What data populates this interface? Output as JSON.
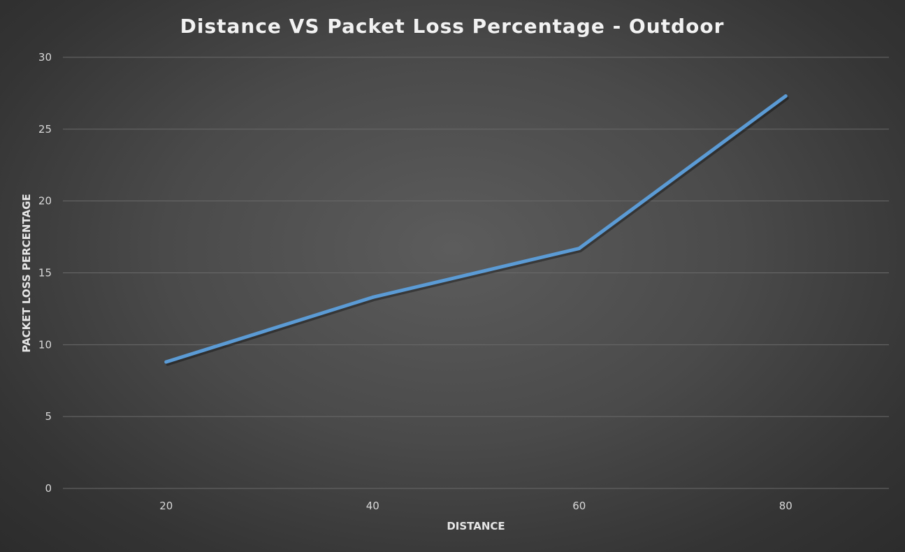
{
  "chart_data": {
    "type": "line",
    "title": "Distance VS Packet Loss Percentage - Outdoor",
    "xlabel": "DISTANCE",
    "ylabel": "PACKET LOSS PERCENTAGE",
    "categories": [
      "20",
      "40",
      "60",
      "80"
    ],
    "x": [
      20,
      40,
      60,
      80
    ],
    "series": [
      {
        "values": [
          8.8,
          13.3,
          16.7,
          27.3
        ],
        "color": "#5b9bd5"
      }
    ],
    "ylim": [
      0,
      30
    ],
    "yticks": [
      "0",
      "5",
      "10",
      "15",
      "20",
      "25",
      "30"
    ],
    "grid": true,
    "legend": "none"
  }
}
